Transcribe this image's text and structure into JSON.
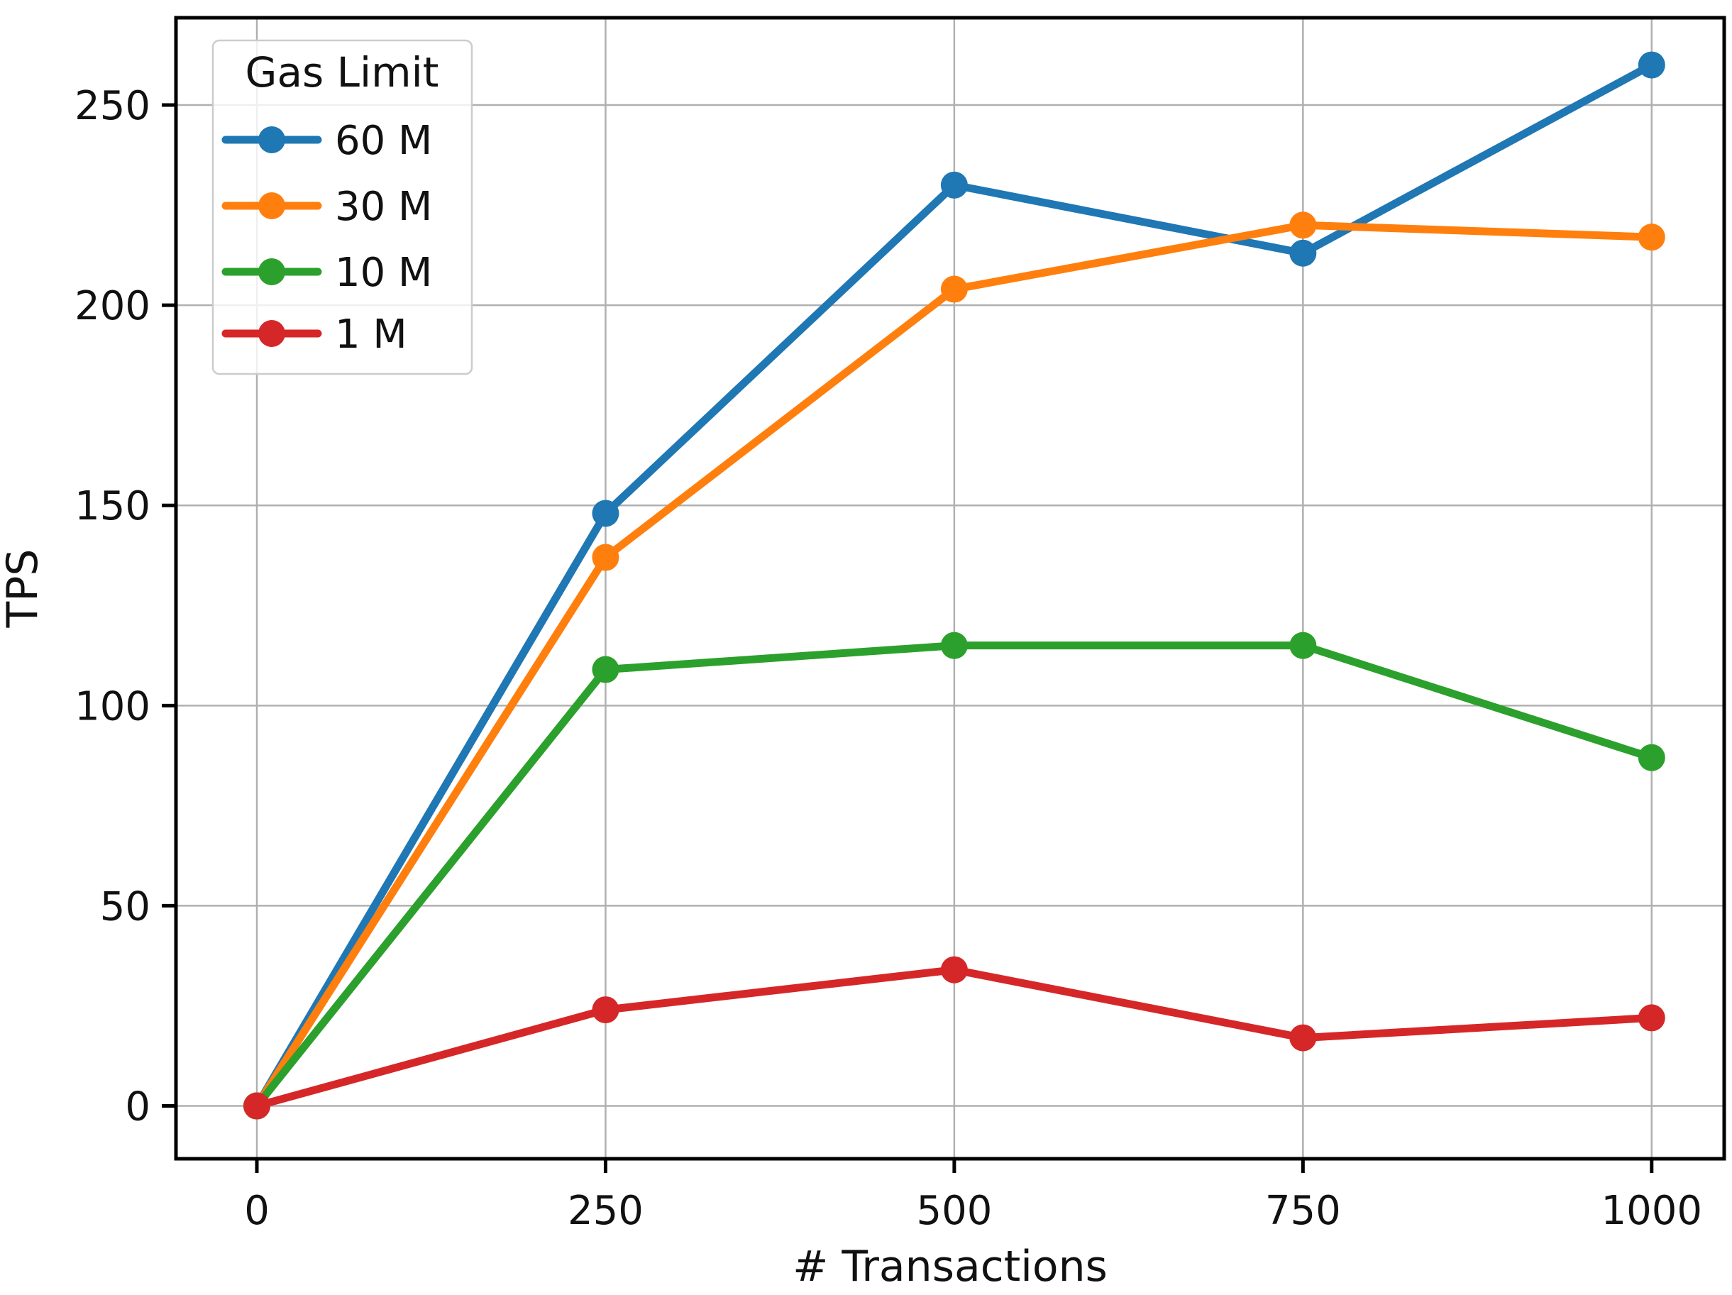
{
  "chart_data": {
    "type": "line",
    "title": "",
    "xlabel": "# Transactions",
    "ylabel": "TPS",
    "categories": [
      0,
      250,
      500,
      750,
      1000
    ],
    "series": [
      {
        "name": "60 M",
        "color": "#1f77b4",
        "values": [
          0,
          148,
          230,
          213,
          260
        ]
      },
      {
        "name": "30 M",
        "color": "#ff7f0e",
        "values": [
          0,
          137,
          204,
          220,
          217
        ]
      },
      {
        "name": "10 M",
        "color": "#2ca02c",
        "values": [
          0,
          109,
          115,
          115,
          87
        ]
      },
      {
        "name": "1 M",
        "color": "#d62728",
        "values": [
          0,
          24,
          34,
          17,
          22
        ]
      }
    ],
    "xticks": [
      0,
      250,
      500,
      750,
      1000
    ],
    "yticks": [
      0,
      50,
      100,
      150,
      200,
      250
    ],
    "xlim": [
      -58,
      1052
    ],
    "ylim": [
      -13.2,
      271.8
    ],
    "grid": true,
    "legend": {
      "title": "Gas Limit",
      "position": "upper left"
    }
  },
  "colors": {
    "grid": "#b0b0b0",
    "spine": "#000000",
    "text": "#111111",
    "legend_border": "#cccccc",
    "legend_fill": "#ffffff",
    "background": "#ffffff"
  }
}
